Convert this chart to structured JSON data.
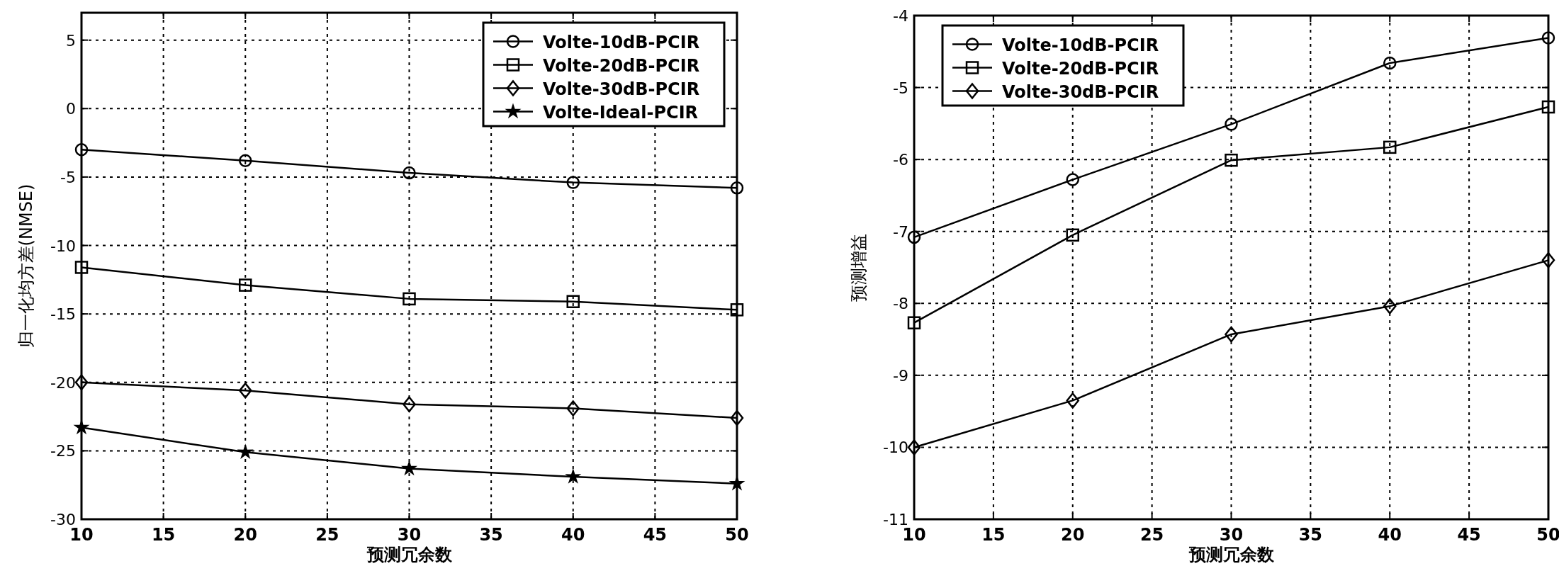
{
  "chart_data": [
    {
      "type": "line",
      "xlabel": "预测冗余数",
      "ylabel": "归一化均方差(NMSE)",
      "x": [
        10,
        20,
        30,
        40,
        50
      ],
      "xlim": [
        10,
        50
      ],
      "xticks": [
        10,
        15,
        20,
        25,
        30,
        35,
        40,
        45,
        50
      ],
      "ylim": [
        -30,
        7
      ],
      "yticks": [
        -30,
        -25,
        -20,
        -15,
        -10,
        -5,
        0,
        5
      ],
      "grid": true,
      "legend": "top right",
      "line_style": "solid",
      "series": [
        {
          "name": "Volte-10dB-PCIR",
          "color": "#000000",
          "marker": "circle",
          "values": [
            -3.0,
            -3.8,
            -4.7,
            -5.4,
            -5.8
          ]
        },
        {
          "name": "Volte-20dB-PCIR",
          "color": "#000000",
          "marker": "square",
          "values": [
            -11.6,
            -12.9,
            -13.9,
            -14.1,
            -14.7
          ]
        },
        {
          "name": "Volte-30dB-PCIR",
          "color": "#000000",
          "marker": "diamond",
          "values": [
            -20.0,
            -20.6,
            -21.6,
            -21.9,
            -22.6
          ]
        },
        {
          "name": "Volte-Ideal-PCIR",
          "color": "#000000",
          "marker": "star",
          "values": [
            -23.3,
            -25.1,
            -26.3,
            -26.9,
            -27.4
          ]
        }
      ]
    },
    {
      "type": "line",
      "xlabel": "预测冗余数",
      "ylabel": "预测增益",
      "x": [
        10,
        20,
        30,
        40,
        50
      ],
      "xlim": [
        10,
        50
      ],
      "xticks": [
        10,
        15,
        20,
        25,
        30,
        35,
        40,
        45,
        50
      ],
      "ylim": [
        -11,
        -4
      ],
      "yticks": [
        -11,
        -10,
        -9,
        -8,
        -7,
        -6,
        -5,
        -4
      ],
      "grid": true,
      "legend": "top left",
      "line_style": "solid",
      "series": [
        {
          "name": "Volte-10dB-PCIR",
          "color": "#000000",
          "marker": "circle",
          "values": [
            -7.08,
            -6.28,
            -5.51,
            -4.66,
            -4.31
          ]
        },
        {
          "name": "Volte-20dB-PCIR",
          "color": "#000000",
          "marker": "square",
          "values": [
            -8.27,
            -7.05,
            -6.01,
            -5.83,
            -5.27
          ]
        },
        {
          "name": "Volte-30dB-PCIR",
          "color": "#000000",
          "marker": "diamond",
          "values": [
            -10.0,
            -9.35,
            -8.43,
            -8.04,
            -7.4
          ]
        }
      ]
    }
  ]
}
